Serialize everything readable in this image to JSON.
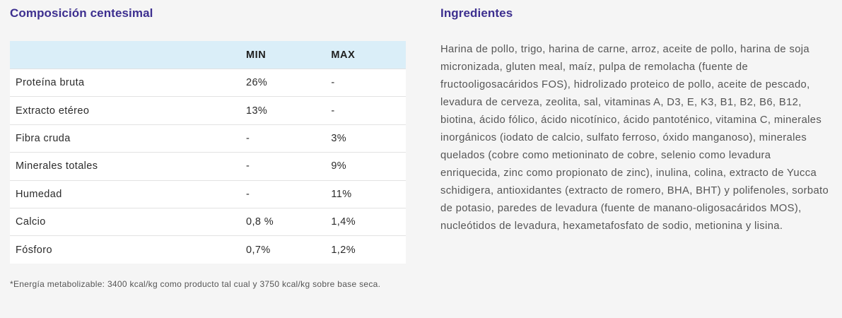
{
  "composition": {
    "title": "Composición centesimal",
    "headers": [
      "",
      "MIN",
      "MAX"
    ],
    "rows": [
      {
        "name": "Proteína bruta",
        "min": "26%",
        "max": "-"
      },
      {
        "name": "Extracto etéreo",
        "min": "13%",
        "max": "-"
      },
      {
        "name": "Fibra cruda",
        "min": "-",
        "max": "3%"
      },
      {
        "name": "Minerales totales",
        "min": "-",
        "max": "9%"
      },
      {
        "name": "Humedad",
        "min": "-",
        "max": "11%"
      },
      {
        "name": "Calcio",
        "min": "0,8 %",
        "max": "1,4%"
      },
      {
        "name": "Fósforo",
        "min": "0,7%",
        "max": "1,2%"
      }
    ],
    "footnote": "*Energía metabolizable: 3400 kcal/kg como producto tal cual y 3750 kcal/kg sobre base seca."
  },
  "ingredients": {
    "title": "Ingredientes",
    "text": "Harina de pollo, trigo, harina de carne, arroz, aceite de pollo, harina de soja micronizada, gluten meal, maíz, pulpa de remolacha (fuente de fructooligosacáridos FOS), hidrolizado proteico de pollo, aceite de pescado, levadura de cerveza, zeolita, sal, vitaminas A, D3, E, K3, B1, B2, B6, B12, biotina, ácido fólico, ácido nicotínico, ácido pantoténico, vitamina C, minerales inorgánicos (iodato de calcio, sulfato ferroso, óxido manganoso), minerales quelados (cobre como metioninato de cobre, selenio como levadura enriquecida, zinc como propionato de zinc), inulina, colina, extracto de Yucca schidigera, antioxidantes (extracto de romero, BHA, BHT) y polifenoles, sorbato de potasio, paredes de levadura (fuente de manano-oligosacáridos MOS), nucleótidos de levadura, hexametafosfato de sodio, metionina y lisina."
  },
  "colors": {
    "title": "#3d2f8f",
    "table_header_bg": "#daeef8",
    "page_bg": "#f5f5f5"
  }
}
